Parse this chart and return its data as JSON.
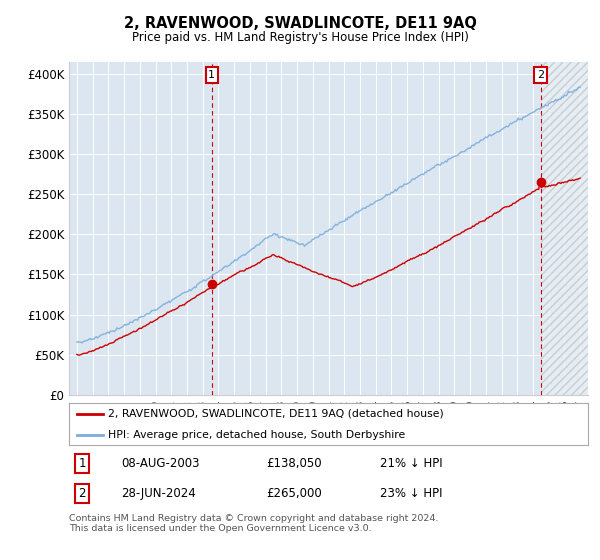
{
  "title": "2, RAVENWOOD, SWADLINCOTE, DE11 9AQ",
  "subtitle": "Price paid vs. HM Land Registry's House Price Index (HPI)",
  "background_color": "#dce6f1",
  "fig_bg_color": "#ffffff",
  "legend_label_red": "2, RAVENWOOD, SWADLINCOTE, DE11 9AQ (detached house)",
  "legend_label_blue": "HPI: Average price, detached house, South Derbyshire",
  "table_rows": [
    {
      "num": "1",
      "date": "08-AUG-2003",
      "price": "£138,050",
      "note": "21% ↓ HPI"
    },
    {
      "num": "2",
      "date": "28-JUN-2024",
      "price": "£265,000",
      "note": "23% ↓ HPI"
    }
  ],
  "footnote": "Contains HM Land Registry data © Crown copyright and database right 2024.\nThis data is licensed under the Open Government Licence v3.0.",
  "marker1_x": 2003.58,
  "marker2_x": 2024.48,
  "marker1_y": 138050,
  "marker2_y": 265000,
  "yticks": [
    0,
    50000,
    100000,
    150000,
    200000,
    250000,
    300000,
    350000,
    400000
  ],
  "ytick_labels": [
    "£0",
    "£50K",
    "£100K",
    "£150K",
    "£200K",
    "£250K",
    "£300K",
    "£350K",
    "£400K"
  ],
  "xlim": [
    1994.5,
    2027.5
  ],
  "ylim": [
    0,
    415000
  ],
  "hpi_color": "#7aaddc",
  "price_color": "#cc0000",
  "marker_box_color": "#cc0000",
  "vline_color": "#cc0000",
  "hatch_color": "#bbbbbb",
  "hatch_start": 2024.48
}
